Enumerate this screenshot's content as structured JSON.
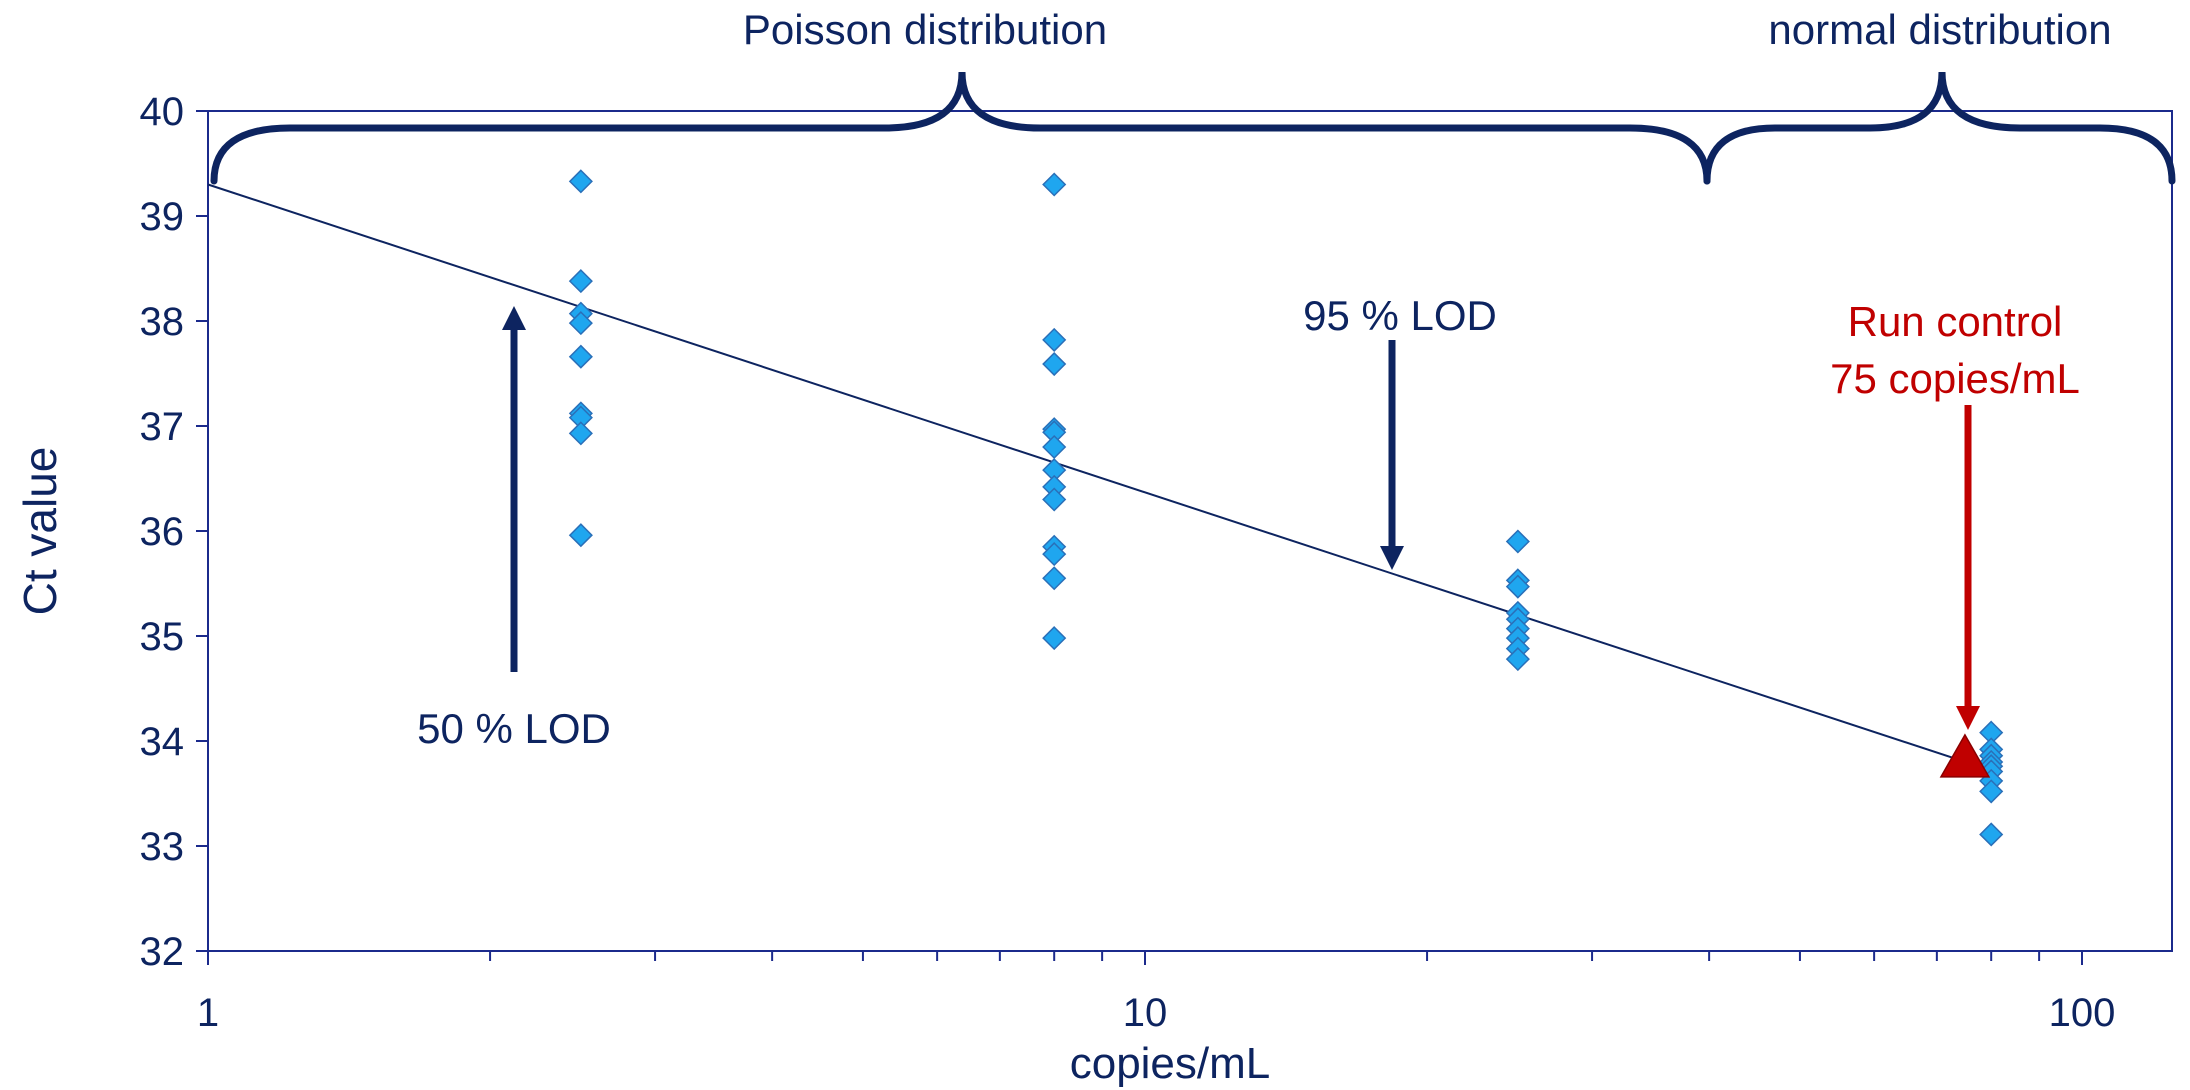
{
  "chart_data": {
    "type": "scatter",
    "title": "",
    "xlabel": "copies/mL",
    "ylabel": "Ct value",
    "x_scale": "log",
    "xlim": [
      1,
      130
    ],
    "ylim": [
      32,
      40
    ],
    "x_ticks": [
      "1",
      "10",
      "100"
    ],
    "y_ticks": [
      "32",
      "33",
      "34",
      "35",
      "36",
      "37",
      "38",
      "39",
      "40"
    ],
    "series": [
      {
        "name": "",
        "marker": "diamond",
        "color": "#1fa6ef",
        "points": [
          [
            2.5,
            39.33
          ],
          [
            2.5,
            38.38
          ],
          [
            2.5,
            38.07
          ],
          [
            2.5,
            37.98
          ],
          [
            2.5,
            37.66
          ],
          [
            2.5,
            37.12
          ],
          [
            2.5,
            37.08
          ],
          [
            2.5,
            36.93
          ],
          [
            2.5,
            35.96
          ],
          [
            8,
            39.3
          ],
          [
            8,
            37.82
          ],
          [
            8,
            37.59
          ],
          [
            8,
            36.97
          ],
          [
            8,
            36.94
          ],
          [
            8,
            36.8
          ],
          [
            8,
            36.58
          ],
          [
            8,
            36.42
          ],
          [
            8,
            36.3
          ],
          [
            8,
            35.85
          ],
          [
            8,
            35.78
          ],
          [
            8,
            35.55
          ],
          [
            8,
            34.98
          ],
          [
            25,
            35.9
          ],
          [
            25,
            35.53
          ],
          [
            25,
            35.47
          ],
          [
            25,
            35.22
          ],
          [
            25,
            35.16
          ],
          [
            25,
            35.07
          ],
          [
            25,
            34.98
          ],
          [
            25,
            34.88
          ],
          [
            25,
            34.78
          ],
          [
            80,
            34.08
          ],
          [
            80,
            33.92
          ],
          [
            80,
            33.86
          ],
          [
            80,
            33.8
          ],
          [
            80,
            33.76
          ],
          [
            80,
            33.71
          ],
          [
            80,
            33.62
          ],
          [
            80,
            33.52
          ],
          [
            80,
            33.11
          ]
        ]
      },
      {
        "name": "Run control",
        "marker": "triangle",
        "color": "#c00000",
        "points": [
          [
            75,
            33.83
          ]
        ]
      }
    ],
    "trendline": {
      "from": [
        1,
        39.3
      ],
      "to": [
        80,
        33.72
      ],
      "color": "#0d2460"
    },
    "annotations": {
      "poisson": "Poisson distribution",
      "normal": "normal distribution",
      "lod50": "50 % LOD",
      "lod95": "95 % LOD",
      "run_control_line1": "Run control",
      "run_control_line2": "75 copies/mL"
    }
  }
}
